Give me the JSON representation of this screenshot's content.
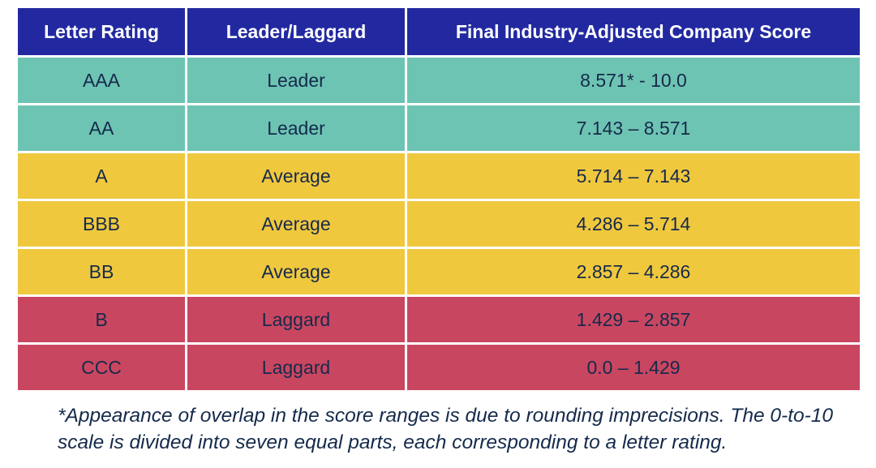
{
  "table": {
    "headers": [
      "Letter Rating",
      "Leader/Laggard",
      "Final Industry-Adjusted Company Score"
    ],
    "rows": [
      {
        "rating": "AAA",
        "category": "Leader",
        "score_range": "8.571* - 10.0",
        "tier": "leader"
      },
      {
        "rating": "AA",
        "category": "Leader",
        "score_range": "7.143 – 8.571",
        "tier": "leader"
      },
      {
        "rating": "A",
        "category": "Average",
        "score_range": "5.714 – 7.143",
        "tier": "average"
      },
      {
        "rating": "BBB",
        "category": "Average",
        "score_range": "4.286 – 5.714",
        "tier": "average"
      },
      {
        "rating": "BB",
        "category": "Average",
        "score_range": "2.857 – 4.286",
        "tier": "average"
      },
      {
        "rating": "B",
        "category": "Laggard",
        "score_range": "1.429 – 2.857",
        "tier": "laggard"
      },
      {
        "rating": "CCC",
        "category": "Laggard",
        "score_range": "0.0 – 1.429",
        "tier": "laggard"
      }
    ]
  },
  "footnote": "*Appearance of overlap in the score ranges is due to rounding imprecisions. The 0-to-10 scale is divided into seven equal parts, each corresponding to a letter rating.",
  "colors": {
    "header_bg": "#2229a0",
    "header_text": "#ffffff",
    "leader_bg": "#6ec4b3",
    "average_bg": "#f0c83e",
    "laggard_bg": "#c94661",
    "cell_text": "#152a4b",
    "border": "#ffffff"
  },
  "chart_data": {
    "type": "table",
    "title": "",
    "columns": [
      "Letter Rating",
      "Leader/Laggard",
      "Final Industry-Adjusted Company Score"
    ],
    "rows": [
      [
        "AAA",
        "Leader",
        "8.571* - 10.0"
      ],
      [
        "AA",
        "Leader",
        "7.143 – 8.571"
      ],
      [
        "A",
        "Average",
        "5.714 – 7.143"
      ],
      [
        "BBB",
        "Average",
        "4.286 – 5.714"
      ],
      [
        "BB",
        "Average",
        "2.857 – 4.286"
      ],
      [
        "B",
        "Laggard",
        "1.429 – 2.857"
      ],
      [
        "CCC",
        "Laggard",
        "0.0 – 1.429"
      ]
    ],
    "row_tiers": [
      "leader",
      "leader",
      "average",
      "average",
      "average",
      "laggard",
      "laggard"
    ],
    "score_bounds": [
      [
        8.571,
        10.0
      ],
      [
        7.143,
        8.571
      ],
      [
        5.714,
        7.143
      ],
      [
        4.286,
        5.714
      ],
      [
        2.857,
        4.286
      ],
      [
        1.429,
        2.857
      ],
      [
        0.0,
        1.429
      ]
    ]
  }
}
